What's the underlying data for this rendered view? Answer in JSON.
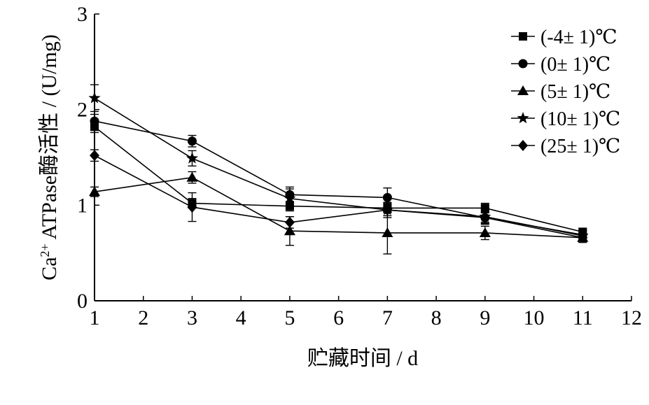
{
  "chart_data": {
    "type": "line",
    "xlabel": "贮藏时间 / d",
    "ylabel": "Ca²⁺ ATPase酶活性 / (U/mg)",
    "ylabel_parts": {
      "prefix": "Ca",
      "sup": "2+",
      "rest": " ATPase酶活性 / (U/mg)"
    },
    "xlim": [
      1,
      12
    ],
    "ylim": [
      0,
      3
    ],
    "xticks": [
      "1",
      "2",
      "3",
      "4",
      "5",
      "6",
      "7",
      "8",
      "9",
      "10",
      "11",
      "12"
    ],
    "yticks": [
      "0",
      "1",
      "2",
      "3"
    ],
    "grid": false,
    "legend_position": "top-right",
    "series": [
      {
        "name": "(-4± 1)℃",
        "marker": "square",
        "x": [
          1,
          3,
          5,
          7,
          9,
          11
        ],
        "y": [
          1.82,
          1.02,
          0.99,
          0.97,
          0.97,
          0.72
        ],
        "err": [
          0.06,
          0.05,
          0.05,
          0.05,
          0.05,
          0.04
        ]
      },
      {
        "name": "(0± 1)℃",
        "marker": "circle",
        "x": [
          1,
          3,
          5,
          7,
          9,
          11
        ],
        "y": [
          1.88,
          1.67,
          1.11,
          1.08,
          0.87,
          0.69
        ],
        "err": [
          0.07,
          0.06,
          0.08,
          0.1,
          0.06,
          0.04
        ]
      },
      {
        "name": "(5± 1)℃",
        "marker": "triangle",
        "x": [
          1,
          3,
          5,
          7,
          9,
          11
        ],
        "y": [
          1.14,
          1.29,
          0.73,
          0.71,
          0.71,
          0.66
        ],
        "err": [
          0.05,
          0.06,
          0.15,
          0.22,
          0.07,
          0.05
        ]
      },
      {
        "name": "(10± 1)℃",
        "marker": "star",
        "x": [
          1,
          3,
          5,
          7,
          9,
          11
        ],
        "y": [
          2.12,
          1.49,
          1.07,
          0.95,
          0.88,
          0.68
        ],
        "err": [
          0.14,
          0.08,
          0.1,
          0.08,
          0.08,
          0.06
        ]
      },
      {
        "name": "(25± 1)℃",
        "marker": "diamond",
        "x": [
          1,
          3,
          5,
          7,
          9,
          11
        ],
        "y": [
          1.52,
          0.98,
          0.82,
          0.95,
          0.87,
          0.66
        ],
        "err": [
          0.06,
          0.15,
          0.06,
          0.06,
          0.05,
          0.04
        ]
      }
    ]
  }
}
